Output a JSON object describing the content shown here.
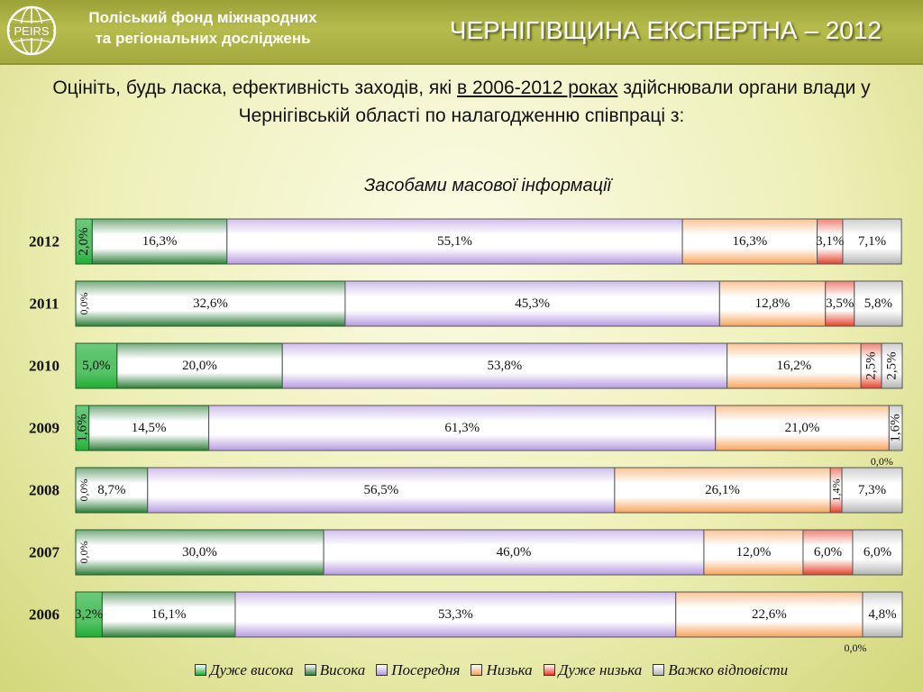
{
  "header": {
    "org_line1": "Поліський фонд міжнародних",
    "org_line2": "та регіональних досліджень",
    "logo_text": "PEIRS",
    "title": "ЧЕРНІГІВЩИНА ЕКСПЕРТНА – 2012"
  },
  "question": {
    "part1": "Оцініть, будь ласка, ефективність заходів, які ",
    "underlined": "в 2006-2012 роках",
    "part2": " здійснювали органи влади у Чернігівській області по налагодженню співпраці з:"
  },
  "chart_data": {
    "type": "bar",
    "orientation": "horizontal",
    "stacked": true,
    "subtitle": "Засобами масової інформації",
    "categories": [
      "2012",
      "2011",
      "2010",
      "2009",
      "2008",
      "2007",
      "2006"
    ],
    "series": [
      {
        "name": "Дуже висока",
        "color": "#1fae35",
        "values": [
          2.0,
          0.0,
          5.0,
          1.6,
          0.0,
          0.0,
          3.2
        ],
        "labels": [
          "2,0%",
          "0,0%",
          "5,0%",
          "1,6%",
          "0,0%",
          "0,0%",
          "3,2%"
        ]
      },
      {
        "name": "Висока",
        "color": "#2e7d3a",
        "values": [
          16.3,
          32.6,
          20.0,
          14.5,
          8.7,
          30.0,
          16.1
        ],
        "labels": [
          "16,3%",
          "32,6%",
          "20,0%",
          "14,5%",
          "8,7%",
          "30,0%",
          "16,1%"
        ]
      },
      {
        "name": "Посередня",
        "color": "#b79be0",
        "values": [
          55.1,
          45.3,
          53.8,
          61.3,
          56.5,
          46.0,
          53.3
        ],
        "labels": [
          "55,1%",
          "45,3%",
          "53,8%",
          "61,3%",
          "56,5%",
          "46,0%",
          "53,3%"
        ]
      },
      {
        "name": "Низька",
        "color": "#f7a35c",
        "values": [
          16.3,
          12.8,
          16.2,
          21.0,
          26.1,
          12.0,
          22.6
        ],
        "labels": [
          "16,3%",
          "12,8%",
          "16,2%",
          "21,0%",
          "26,1%",
          "12,0%",
          "22,6%"
        ]
      },
      {
        "name": "Дуже низька",
        "color": "#e4402a",
        "values": [
          3.1,
          3.5,
          2.5,
          0.0,
          1.4,
          6.0,
          0.0
        ],
        "labels": [
          "3,1%",
          "3,5%",
          "2,5%",
          "0,0%",
          "1,4%",
          "6,0%",
          "0,0%"
        ]
      },
      {
        "name": "Важко відповісти",
        "color": "#b4b4b4",
        "values": [
          7.1,
          5.8,
          2.5,
          1.6,
          7.3,
          6.0,
          4.8
        ],
        "labels": [
          "7,1%",
          "5,8%",
          "2,5%",
          "1,6%",
          "7,3%",
          "6,0%",
          "4,8%"
        ]
      }
    ],
    "legend": [
      "Дуже висока",
      "Висока",
      "Посередня",
      "Низька",
      "Дуже низька",
      "Важко відповісти"
    ],
    "legend_position": "bottom",
    "xlim": [
      0,
      100
    ]
  }
}
